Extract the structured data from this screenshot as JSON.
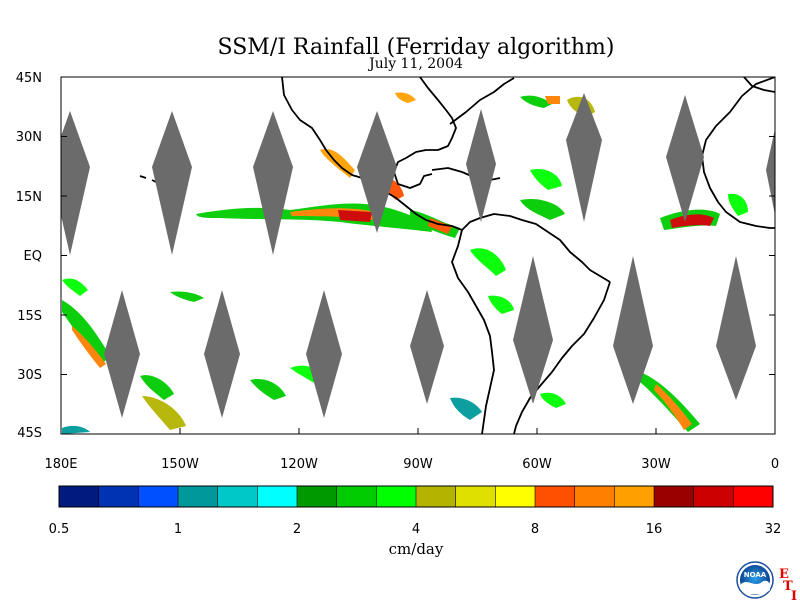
{
  "title": "SSM/I Rainfall (Ferriday algorithm)",
  "date": "July 11, 2004",
  "lat_labels": [
    "45N",
    "30N",
    "15N",
    "EQ",
    "15S",
    "30S",
    "45S"
  ],
  "lon_labels": [
    "180E",
    "150W",
    "120W",
    "90W",
    "60W",
    "30W",
    "0"
  ],
  "colorbar": {
    "unit": "cm/day",
    "tick_labels": [
      "0.5",
      "1",
      "2",
      "4",
      "8",
      "16",
      "32"
    ],
    "colors": [
      "#001a80",
      "#0033b3",
      "#0050ff",
      "#00999b",
      "#00c8c8",
      "#00ffff",
      "#009900",
      "#00cc00",
      "#00ff00",
      "#b4b400",
      "#e0e000",
      "#ffff00",
      "#ff5000",
      "#ff8000",
      "#ffa000",
      "#990000",
      "#cc0000",
      "#ff0000"
    ]
  },
  "colors": {
    "swath_gap": "#6b6b6b",
    "coastline": "#000000"
  },
  "logo": {
    "text": "NOAA",
    "letters": [
      "E",
      "T",
      "I"
    ]
  }
}
